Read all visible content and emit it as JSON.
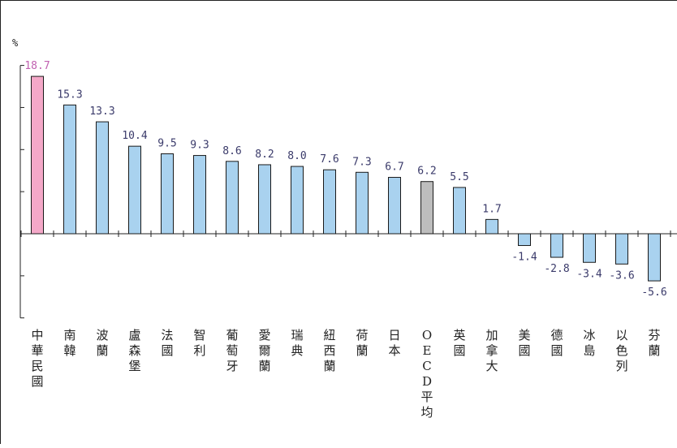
{
  "chart_data": {
    "type": "bar",
    "title": "",
    "xlabel": "",
    "ylabel": "%",
    "ylim": [
      -10,
      20
    ],
    "yticks": [
      -10,
      -5,
      0,
      5,
      10,
      15,
      20
    ],
    "grid": false,
    "categories": [
      "中華民國",
      "南韓",
      "波蘭",
      "盧森堡",
      "法國",
      "智利",
      "葡萄牙",
      "愛爾蘭",
      "瑞典",
      "紐西蘭",
      "荷蘭",
      "日本",
      "OECD平均",
      "英國",
      "加拿大",
      "美國",
      "德國",
      "冰島",
      "以色列",
      "芬蘭"
    ],
    "values": [
      18.7,
      15.3,
      13.3,
      10.4,
      9.5,
      9.3,
      8.6,
      8.2,
      8.0,
      7.6,
      7.3,
      6.7,
      6.2,
      5.5,
      1.7,
      -1.4,
      -2.8,
      -3.4,
      -3.6,
      -5.6
    ],
    "value_labels": [
      "18.7",
      "15.3",
      "13.3",
      "10.4",
      "9.5",
      "9.3",
      "8.6",
      "8.2",
      "8.0",
      "7.6",
      "7.3",
      "6.7",
      "6.2",
      "5.5",
      "1.7",
      "-1.4",
      "-2.8",
      "-3.4",
      "-3.6",
      "-5.6"
    ],
    "bar_colors": {
      "highlight": "#f4a8c8",
      "average": "#bdbdbd",
      "default": "#a9d2ef",
      "stroke": "#1a1a1a"
    },
    "label_colors": {
      "highlight": "#c060b0",
      "default": "#3a3a6a"
    },
    "highlight_index": 0,
    "average_index": 12
  }
}
